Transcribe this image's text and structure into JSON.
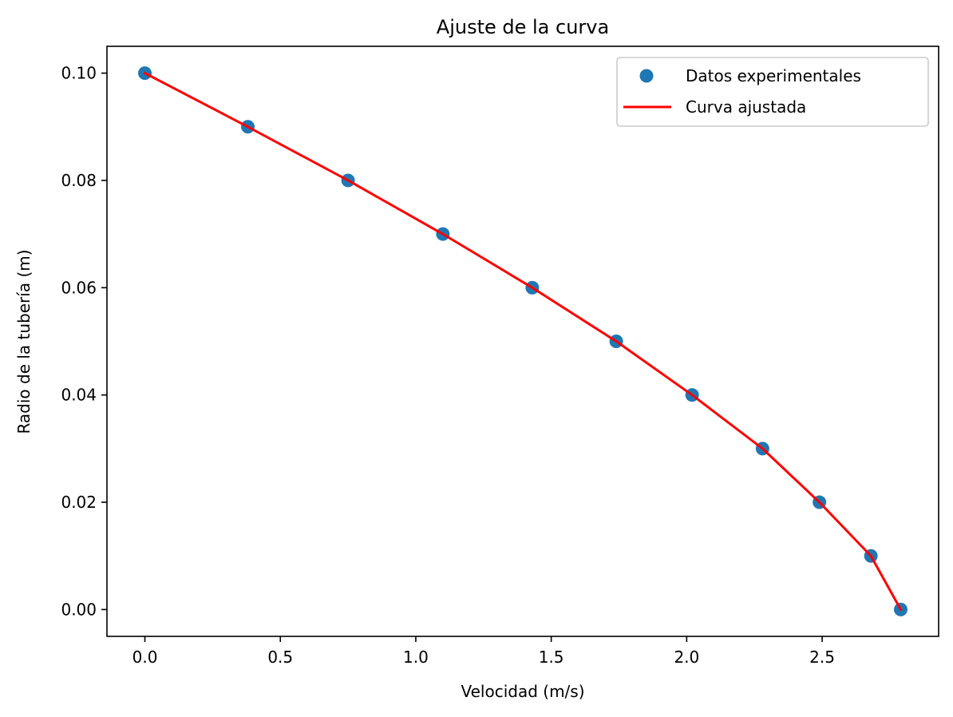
{
  "chart_data": {
    "type": "scatter",
    "title": "Ajuste de la curva",
    "xlabel": "Velocidad (m/s)",
    "ylabel": "Radio de la tubería (m)",
    "xlim": [
      -0.14,
      2.93
    ],
    "ylim": [
      -0.005,
      0.105
    ],
    "xticks": [
      0.0,
      0.5,
      1.0,
      1.5,
      2.0,
      2.5
    ],
    "xtick_labels": [
      "0.0",
      "0.5",
      "1.0",
      "1.5",
      "2.0",
      "2.5"
    ],
    "yticks": [
      0.0,
      0.02,
      0.04,
      0.06,
      0.08,
      0.1
    ],
    "ytick_labels": [
      "0.00",
      "0.02",
      "0.04",
      "0.06",
      "0.08",
      "0.10"
    ],
    "grid": false,
    "legend_position": "top-right",
    "series": [
      {
        "name": "Datos experimentales",
        "kind": "scatter",
        "color": "#1f77b4",
        "x": [
          0.0,
          0.38,
          0.75,
          1.1,
          1.43,
          1.74,
          2.02,
          2.28,
          2.49,
          2.68,
          2.79
        ],
        "y": [
          0.1,
          0.09,
          0.08,
          0.07,
          0.06,
          0.05,
          0.04,
          0.03,
          0.02,
          0.01,
          0.0
        ]
      },
      {
        "name": "Curva ajustada",
        "kind": "line",
        "color": "#ff0000",
        "x": [
          0.0,
          0.38,
          0.75,
          1.1,
          1.43,
          1.74,
          2.02,
          2.28,
          2.49,
          2.68,
          2.79
        ],
        "y": [
          0.1,
          0.09,
          0.08,
          0.07,
          0.06,
          0.05,
          0.04,
          0.03,
          0.02,
          0.01,
          0.0
        ]
      }
    ]
  }
}
